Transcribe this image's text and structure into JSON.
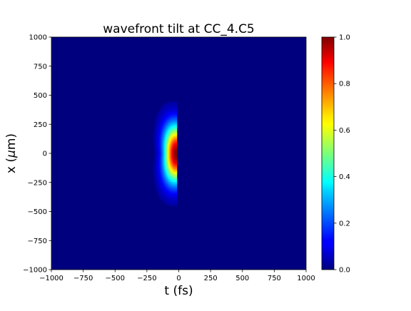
{
  "chart_data": {
    "type": "heatmap",
    "title": "wavefront tilt at CC_4.C5",
    "xlabel_text": "t (fs)",
    "ylabel_main": "x (",
    "ylabel_mu": "μ",
    "ylabel_unit": "m)",
    "x_range": [
      -1000,
      1000
    ],
    "y_range": [
      -1000,
      1000
    ],
    "x_ticks": [
      -1000,
      -750,
      -500,
      -250,
      0,
      250,
      500,
      750,
      1000
    ],
    "x_tick_labels": [
      "−1000",
      "−750",
      "−500",
      "−250",
      "0",
      "250",
      "500",
      "750",
      "1000"
    ],
    "y_ticks": [
      -1000,
      -750,
      -500,
      -250,
      0,
      250,
      500,
      750,
      1000
    ],
    "y_tick_labels": [
      "−1000",
      "−750",
      "−500",
      "−250",
      "0",
      "250",
      "500",
      "750",
      "1000"
    ],
    "colormap": "jet",
    "colorbar_range": [
      0.0,
      1.0
    ],
    "colorbar_ticks": [
      0.0,
      0.2,
      0.4,
      0.6,
      0.8,
      1.0
    ],
    "colorbar_tick_labels": [
      "0.0",
      "0.2",
      "0.4",
      "0.6",
      "0.8",
      "1.0"
    ],
    "pulse": {
      "peak_t": -20,
      "peak_x": 0,
      "peak_value": 1.0,
      "cutoff_t": -15,
      "tail_width_t": 90,
      "width_x": 240,
      "curvature": 0.0004
    },
    "grid": false
  }
}
